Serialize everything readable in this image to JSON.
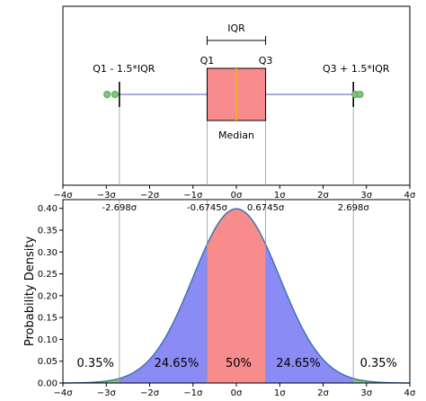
{
  "chart_data": [
    {
      "type": "boxplot",
      "orientation": "horizontal",
      "xlim": [
        -4,
        4
      ],
      "x_ticks": [
        -4,
        -3,
        -2,
        -1,
        0,
        1,
        2,
        3,
        4
      ],
      "x_tick_labels": [
        "−4σ",
        "−3σ",
        "−2σ",
        "−1σ",
        "0σ",
        "1σ",
        "2σ",
        "3σ",
        "4σ"
      ],
      "q1": -0.6745,
      "median": 0,
      "q3": 0.6745,
      "whisker_low": -2.698,
      "whisker_high": 2.698,
      "outliers_low": [
        -2.98,
        -2.8
      ],
      "outliers_high": [
        2.74,
        2.85
      ],
      "box_color": "#f88b8b",
      "median_color": "#f0a830",
      "whisker_line_color": "#8a90d8",
      "outlier_color": "#7cc67c",
      "annotations": {
        "iqr": "IQR",
        "q1": "Q1",
        "q3": "Q3",
        "median": "Median",
        "lower_fence": "Q1 - 1.5*IQR",
        "upper_fence": "Q3 + 1.5*IQR"
      }
    },
    {
      "type": "area",
      "distribution": "normal",
      "mean": 0,
      "sd": 1,
      "xlim": [
        -4,
        4
      ],
      "ylim": [
        0,
        0.42
      ],
      "ylabel": "Probability Density",
      "y_ticks": [
        0.0,
        0.05,
        0.1,
        0.15,
        0.2,
        0.25,
        0.3,
        0.35,
        0.4
      ],
      "y_tick_labels": [
        "0.00",
        "0.05",
        "0.10",
        "0.15",
        "0.20",
        "0.25",
        "0.30",
        "0.35",
        "0.40"
      ],
      "x_ticks": [
        -4,
        -3,
        -2,
        -1,
        0,
        1,
        2,
        3,
        4
      ],
      "x_tick_labels": [
        "−4σ",
        "−3σ",
        "−2σ",
        "−1σ",
        "0σ",
        "1σ",
        "2σ",
        "3σ",
        "4σ"
      ],
      "boundaries": [
        {
          "x": -2.698,
          "label": "-2.698σ"
        },
        {
          "x": -0.6745,
          "label": "-0.6745σ"
        },
        {
          "x": 0.6745,
          "label": "0.6745σ"
        },
        {
          "x": 2.698,
          "label": "2.698σ"
        }
      ],
      "regions": [
        {
          "from": -4,
          "to": -2.698,
          "percent": "0.35%",
          "color": "#7cc67c",
          "label_x": -3.25
        },
        {
          "from": -2.698,
          "to": -0.6745,
          "percent": "24.65%",
          "color": "#8b8bf5",
          "label_x": -1.38
        },
        {
          "from": -0.6745,
          "to": 0.6745,
          "percent": "50%",
          "color": "#f88b8b",
          "label_x": 0.05
        },
        {
          "from": 0.6745,
          "to": 2.698,
          "percent": "24.65%",
          "color": "#8b8bf5",
          "label_x": 1.43
        },
        {
          "from": 2.698,
          "to": 4,
          "percent": "0.35%",
          "color": "#7cc67c",
          "label_x": 3.28
        }
      ],
      "curve_color": "#3a6fb0"
    }
  ]
}
